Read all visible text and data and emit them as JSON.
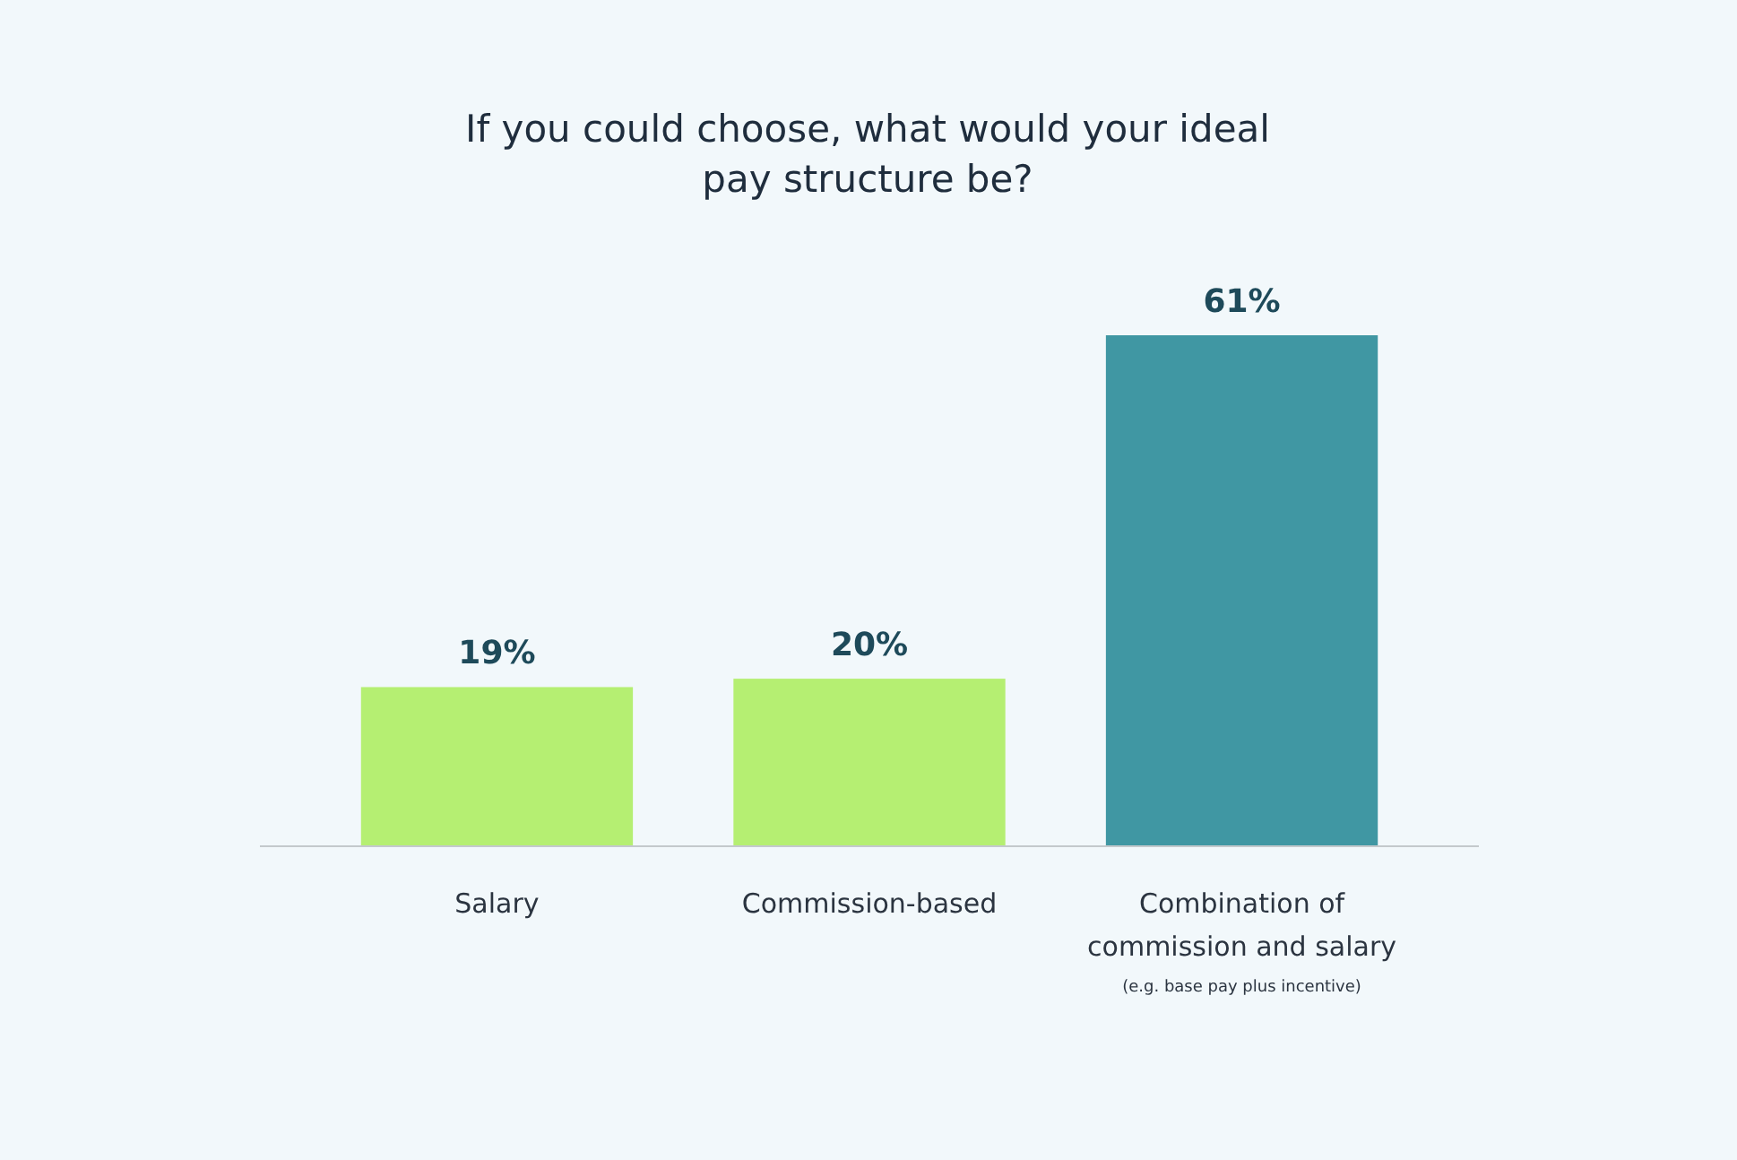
{
  "chart_data": {
    "type": "bar",
    "title": "If you could choose, what would your ideal\npay structure be?",
    "categories": [
      "Salary",
      "Commission-based",
      "Combination of\ncommission and salary"
    ],
    "values": [
      19,
      20,
      61
    ],
    "colors": [
      "#b5ef72",
      "#b5ef72",
      "#4097a3"
    ],
    "value_labels": [
      "19%",
      "20%",
      "61%"
    ],
    "annotations": [
      "(e.g. base pay plus incentive)"
    ]
  }
}
